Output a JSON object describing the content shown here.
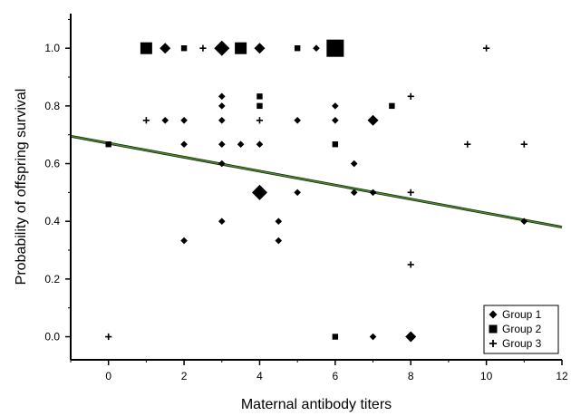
{
  "chart_data": {
    "type": "scatter",
    "xlabel": "Maternal antibody titers",
    "ylabel": "Probability of offspring survival",
    "xlim": [
      -1,
      12
    ],
    "ylim": [
      -0.08,
      1.12
    ],
    "xticks": [
      "0",
      "2",
      "4",
      "6",
      "8",
      "10",
      "12"
    ],
    "yticks": [
      "0.0",
      "0.2",
      "0.4",
      "0.6",
      "0.8",
      "1.0"
    ],
    "grid": false,
    "legend_position": "bottom-right",
    "series": [
      {
        "name": "Group 1",
        "marker": "diamond",
        "points": [
          {
            "x": 1.5,
            "y": 1.0,
            "size": 2
          },
          {
            "x": 3,
            "y": 1.0,
            "size": 3
          },
          {
            "x": 4,
            "y": 1.0,
            "size": 2
          },
          {
            "x": 5.5,
            "y": 1.0,
            "size": 1
          },
          {
            "x": 3,
            "y": 0.833,
            "size": 1
          },
          {
            "x": 3,
            "y": 0.8,
            "size": 1
          },
          {
            "x": 6,
            "y": 0.8,
            "size": 1
          },
          {
            "x": 1.5,
            "y": 0.75,
            "size": 1
          },
          {
            "x": 2,
            "y": 0.75,
            "size": 1
          },
          {
            "x": 3,
            "y": 0.75,
            "size": 1
          },
          {
            "x": 5,
            "y": 0.75,
            "size": 1
          },
          {
            "x": 6,
            "y": 0.75,
            "size": 1
          },
          {
            "x": 7,
            "y": 0.75,
            "size": 2
          },
          {
            "x": 2,
            "y": 0.667,
            "size": 1
          },
          {
            "x": 3,
            "y": 0.667,
            "size": 1
          },
          {
            "x": 3.5,
            "y": 0.667,
            "size": 1
          },
          {
            "x": 4,
            "y": 0.667,
            "size": 1
          },
          {
            "x": 6.5,
            "y": 0.6,
            "size": 1
          },
          {
            "x": 3,
            "y": 0.6,
            "size": 1
          },
          {
            "x": 4,
            "y": 0.5,
            "size": 3
          },
          {
            "x": 5,
            "y": 0.5,
            "size": 1
          },
          {
            "x": 6.5,
            "y": 0.5,
            "size": 1
          },
          {
            "x": 7,
            "y": 0.5,
            "size": 1
          },
          {
            "x": 3,
            "y": 0.4,
            "size": 1
          },
          {
            "x": 4.5,
            "y": 0.4,
            "size": 1
          },
          {
            "x": 11,
            "y": 0.4,
            "size": 1
          },
          {
            "x": 2,
            "y": 0.333,
            "size": 1
          },
          {
            "x": 4.5,
            "y": 0.333,
            "size": 1
          },
          {
            "x": 7,
            "y": 0.0,
            "size": 1
          },
          {
            "x": 8,
            "y": 0.0,
            "size": 2
          }
        ]
      },
      {
        "name": "Group 2",
        "marker": "square",
        "points": [
          {
            "x": 1,
            "y": 1.0,
            "size": 2
          },
          {
            "x": 2,
            "y": 1.0,
            "size": 1
          },
          {
            "x": 3.5,
            "y": 1.0,
            "size": 2
          },
          {
            "x": 5,
            "y": 1.0,
            "size": 1
          },
          {
            "x": 6,
            "y": 1.0,
            "size": 3
          },
          {
            "x": 4,
            "y": 0.833,
            "size": 1
          },
          {
            "x": 4,
            "y": 0.8,
            "size": 1
          },
          {
            "x": 7.5,
            "y": 0.8,
            "size": 1
          },
          {
            "x": 0,
            "y": 0.667,
            "size": 1
          },
          {
            "x": 6,
            "y": 0.667,
            "size": 1
          },
          {
            "x": 6,
            "y": 0.0,
            "size": 1
          }
        ]
      },
      {
        "name": "Group 3",
        "marker": "plus",
        "points": [
          {
            "x": 2.5,
            "y": 1.0,
            "size": 1
          },
          {
            "x": 10,
            "y": 1.0,
            "size": 1
          },
          {
            "x": 8,
            "y": 0.833,
            "size": 1
          },
          {
            "x": 1,
            "y": 0.75,
            "size": 1
          },
          {
            "x": 4,
            "y": 0.75,
            "size": 1
          },
          {
            "x": 9.5,
            "y": 0.667,
            "size": 1
          },
          {
            "x": 11,
            "y": 0.667,
            "size": 1
          },
          {
            "x": 8,
            "y": 0.5,
            "size": 1
          },
          {
            "x": 8,
            "y": 0.25,
            "size": 1
          },
          {
            "x": 0,
            "y": 0.0,
            "size": 1
          }
        ]
      }
    ],
    "trendline": {
      "x": [
        -1,
        12
      ],
      "y": [
        0.695,
        0.38
      ],
      "color": "#4c9a2a"
    }
  }
}
